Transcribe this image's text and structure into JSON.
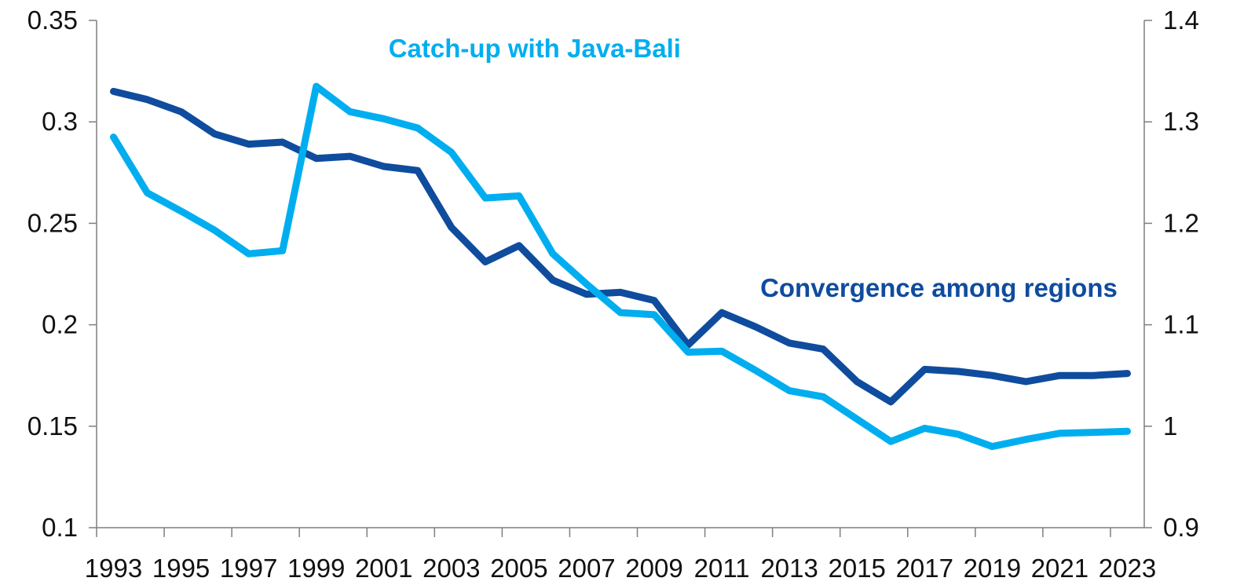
{
  "chart_data": {
    "type": "line",
    "title": "",
    "xlabel": "",
    "ylabel_left": "",
    "ylabel_right": "",
    "grid": false,
    "legend": "none",
    "x": [
      1993,
      1994,
      1995,
      1996,
      1997,
      1998,
      1999,
      2000,
      2001,
      2002,
      2003,
      2004,
      2005,
      2006,
      2007,
      2008,
      2009,
      2010,
      2011,
      2012,
      2013,
      2014,
      2015,
      2016,
      2017,
      2018,
      2019,
      2020,
      2021,
      2022,
      2023
    ],
    "x_tick_labels": [
      "1993",
      "1995",
      "1997",
      "1999",
      "2001",
      "2003",
      "2005",
      "2007",
      "2009",
      "2011",
      "2013",
      "2015",
      "2017",
      "2019",
      "2021",
      "2023"
    ],
    "y_left": {
      "range": [
        0.1,
        0.35
      ],
      "ticks": [
        0.1,
        0.15,
        0.2,
        0.25,
        0.3,
        0.35
      ],
      "tick_labels": [
        "0.1",
        "0.15",
        "0.2",
        "0.25",
        "0.3",
        "0.35"
      ]
    },
    "y_right": {
      "range": [
        0.9,
        1.4
      ],
      "ticks": [
        0.9,
        1.0,
        1.1,
        1.2,
        1.3,
        1.4
      ],
      "tick_labels": [
        "0.9",
        "1",
        "1.1",
        "1.2",
        "1.3",
        "1.4"
      ]
    },
    "series": [
      {
        "axis": "left",
        "color": "#0f4c9e",
        "values": [
          0.315,
          0.311,
          0.305,
          0.294,
          0.289,
          0.29,
          0.282,
          0.283,
          0.278,
          0.276,
          0.248,
          0.231,
          0.239,
          0.222,
          0.215,
          0.216,
          0.212,
          0.19,
          0.206,
          0.199,
          0.191,
          0.188,
          0.172,
          0.162,
          0.178,
          0.177,
          0.175,
          0.172,
          0.175,
          0.175,
          0.176
        ]
      },
      {
        "axis": "right",
        "color": "#00aeef",
        "values": [
          1.285,
          1.23,
          1.212,
          1.193,
          1.17,
          1.173,
          1.335,
          1.31,
          1.303,
          1.294,
          1.27,
          1.225,
          1.227,
          1.17,
          1.14,
          1.112,
          1.11,
          1.073,
          1.074,
          1.055,
          1.035,
          1.029,
          1.007,
          0.985,
          0.998,
          0.992,
          0.98,
          0.987,
          0.993,
          0.994,
          0.995
        ]
      }
    ],
    "annotations": [
      {
        "text": "Catch-up with Java-Bali",
        "color": "#00aeef",
        "anchor_year": 1999,
        "anchor_value": 0.336
      },
      {
        "text": "Convergence among regions",
        "color": "#0f4c9e",
        "anchor_year": 2010,
        "anchor_value": 0.218
      }
    ]
  }
}
